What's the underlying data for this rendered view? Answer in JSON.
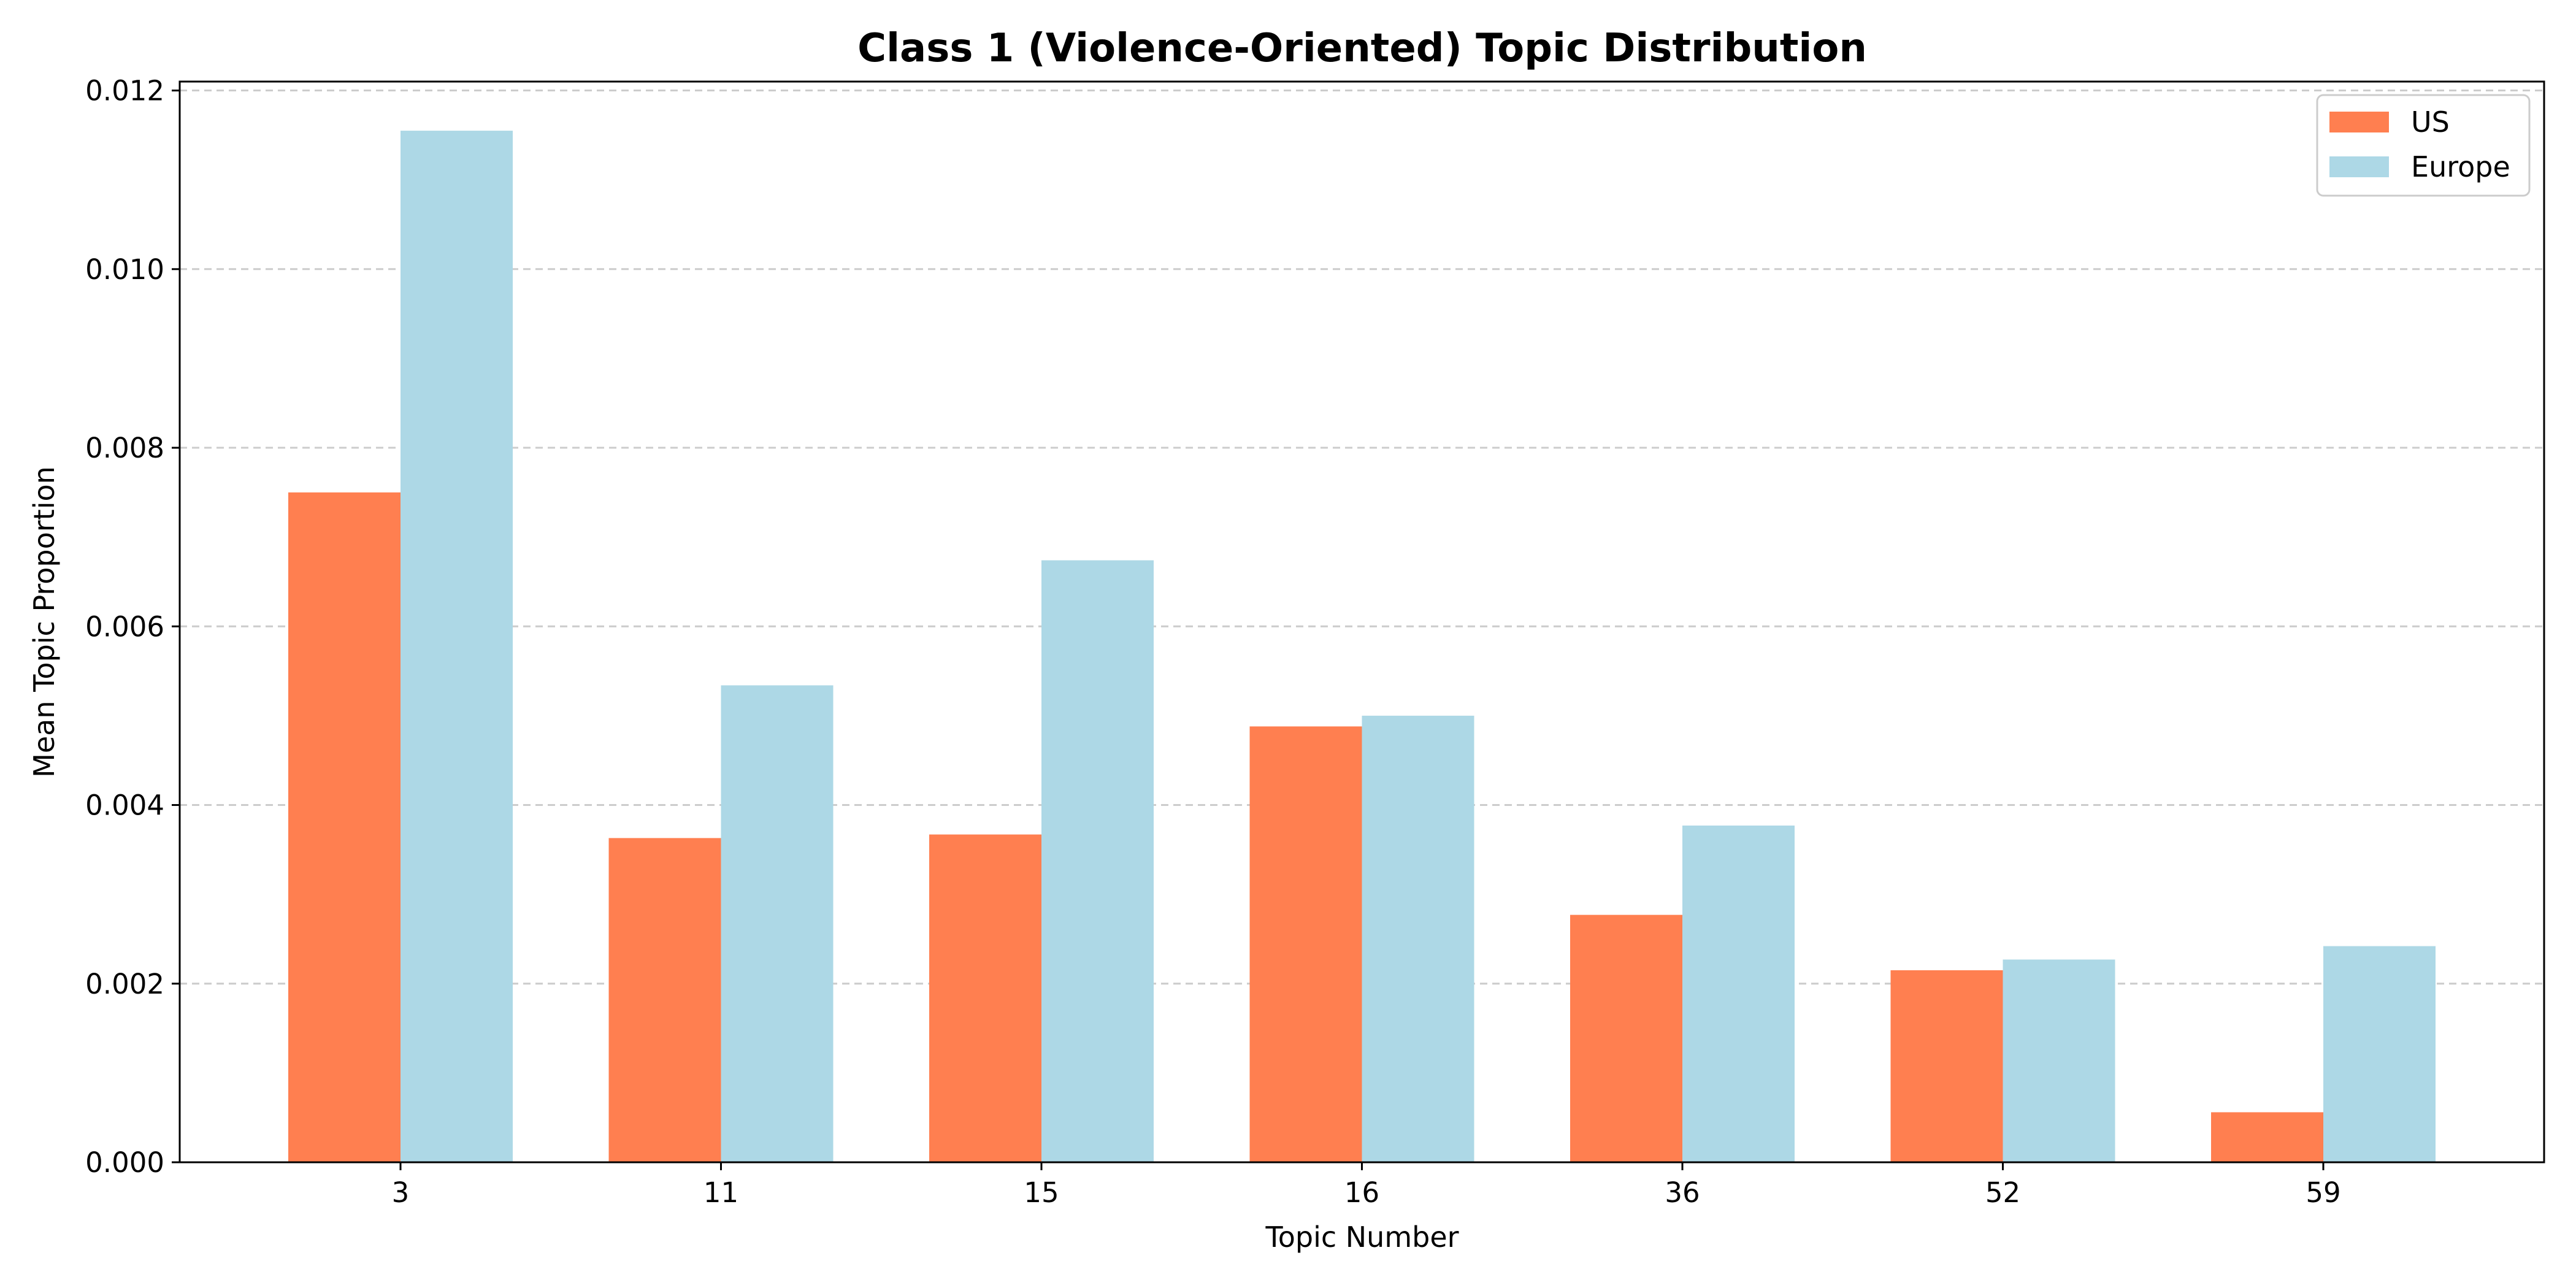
{
  "chart_data": {
    "type": "bar",
    "title": "Class 1 (Violence-Oriented) Topic Distribution",
    "xlabel": "Topic Number",
    "ylabel": "Mean Topic Proportion",
    "categories": [
      "3",
      "11",
      "15",
      "16",
      "36",
      "52",
      "59"
    ],
    "series": [
      {
        "name": "US",
        "color": "#FF7F50",
        "values": [
          0.0075,
          0.00363,
          0.00367,
          0.00488,
          0.00277,
          0.00215,
          0.00056
        ]
      },
      {
        "name": "Europe",
        "color": "#ADD8E6",
        "values": [
          0.01155,
          0.00534,
          0.00674,
          0.005,
          0.00377,
          0.00227,
          0.00242
        ]
      }
    ],
    "ylim": [
      0,
      0.0121
    ],
    "yticks": [
      0.0,
      0.002,
      0.004,
      0.006,
      0.008,
      0.01,
      0.012
    ],
    "ytick_labels": [
      "0.000",
      "0.002",
      "0.004",
      "0.006",
      "0.008",
      "0.010",
      "0.012"
    ],
    "grid": "y, dashed",
    "legend_position": "top-right"
  }
}
